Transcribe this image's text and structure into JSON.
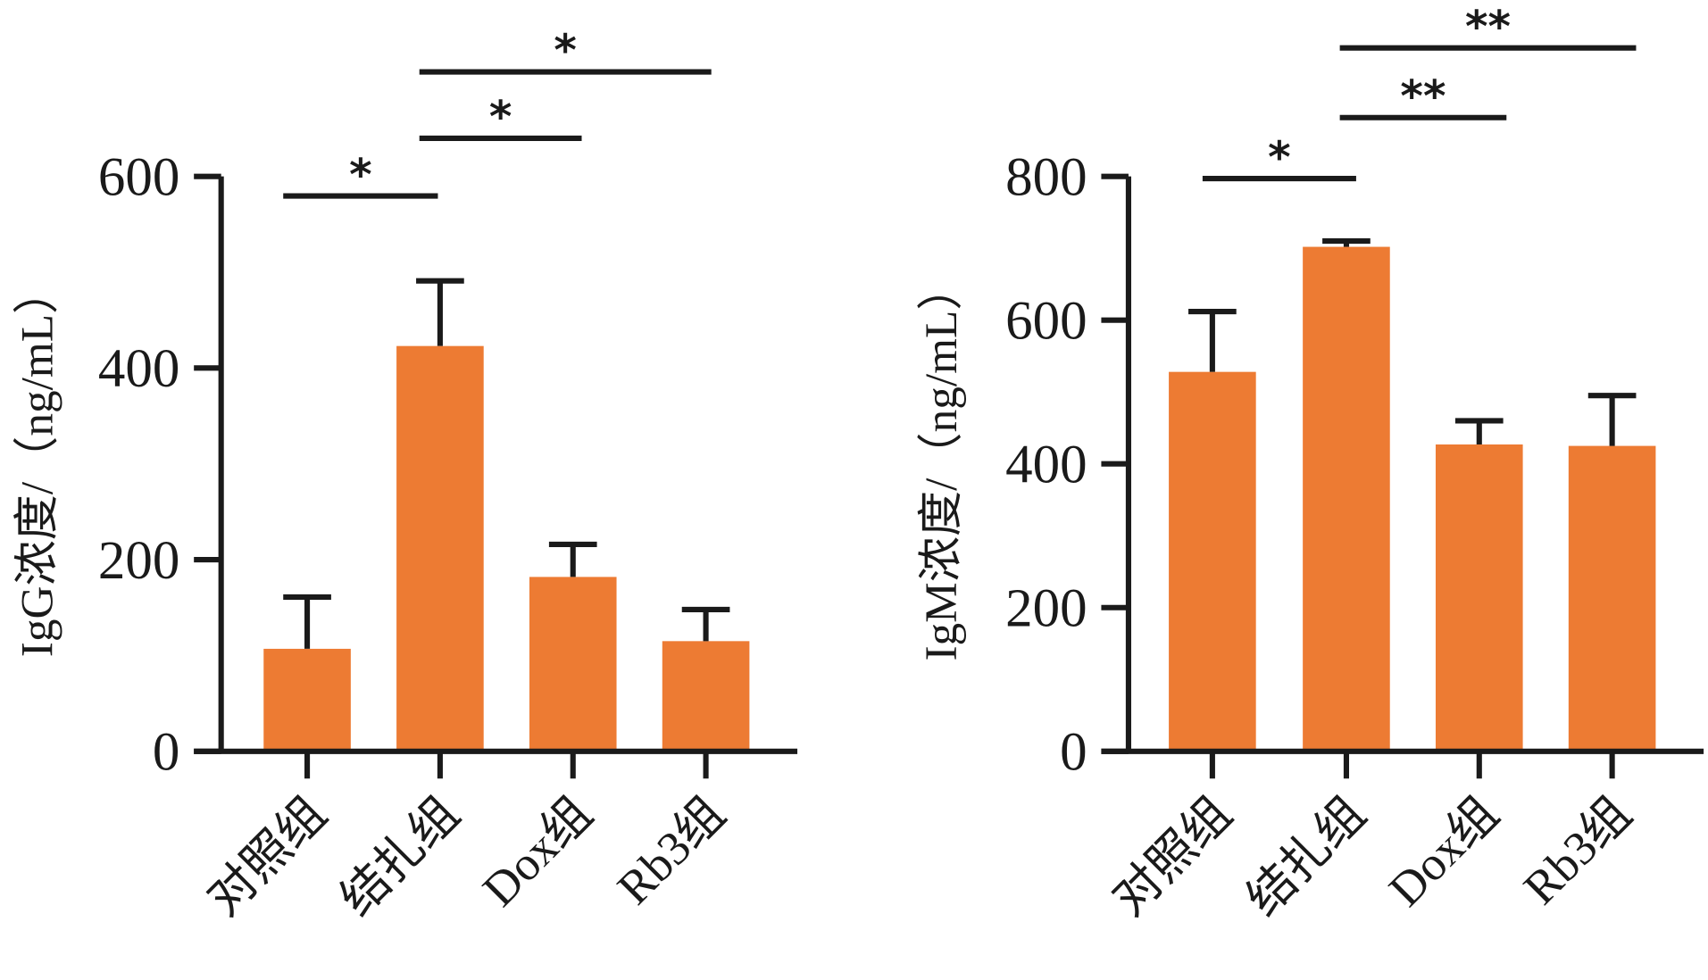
{
  "chart_data": [
    {
      "type": "bar",
      "title": "",
      "xlabel": "",
      "ylabel": "IgG浓度/（ng/mL）",
      "ylim": [
        0,
        600
      ],
      "yticks": [
        0,
        200,
        400,
        600
      ],
      "categories": [
        "对照组",
        "结扎组",
        "Dox组",
        "Rb3组"
      ],
      "series": [
        {
          "name": "IgG",
          "values": [
            107,
            423,
            182,
            115
          ],
          "error_upper": [
            161,
            491,
            216,
            148
          ]
        }
      ],
      "bar_color": "#ED7B33",
      "significance": [
        {
          "from": 0,
          "to": 1,
          "label": "*",
          "level": 1
        },
        {
          "from": 1,
          "to": 2,
          "label": "*",
          "level": 2
        },
        {
          "from": 1,
          "to": 3,
          "label": "*",
          "level": 3
        }
      ],
      "grid": false,
      "legend": "none"
    },
    {
      "type": "bar",
      "title": "",
      "xlabel": "",
      "ylabel": "IgM浓度/（ng/mL）",
      "ylim": [
        0,
        800
      ],
      "yticks": [
        0,
        200,
        400,
        600,
        800
      ],
      "categories": [
        "对照组",
        "结扎组",
        "Dox组",
        "Rb3组"
      ],
      "series": [
        {
          "name": "IgM",
          "values": [
            528,
            702,
            427,
            425
          ],
          "error_upper": [
            612,
            710,
            460,
            495
          ]
        }
      ],
      "bar_color": "#ED7B33",
      "significance": [
        {
          "from": 0,
          "to": 1,
          "label": "*",
          "level": 1
        },
        {
          "from": 1,
          "to": 2,
          "label": "**",
          "level": 2
        },
        {
          "from": 1,
          "to": 3,
          "label": "**",
          "level": 3
        }
      ],
      "grid": false,
      "legend": "none"
    }
  ]
}
